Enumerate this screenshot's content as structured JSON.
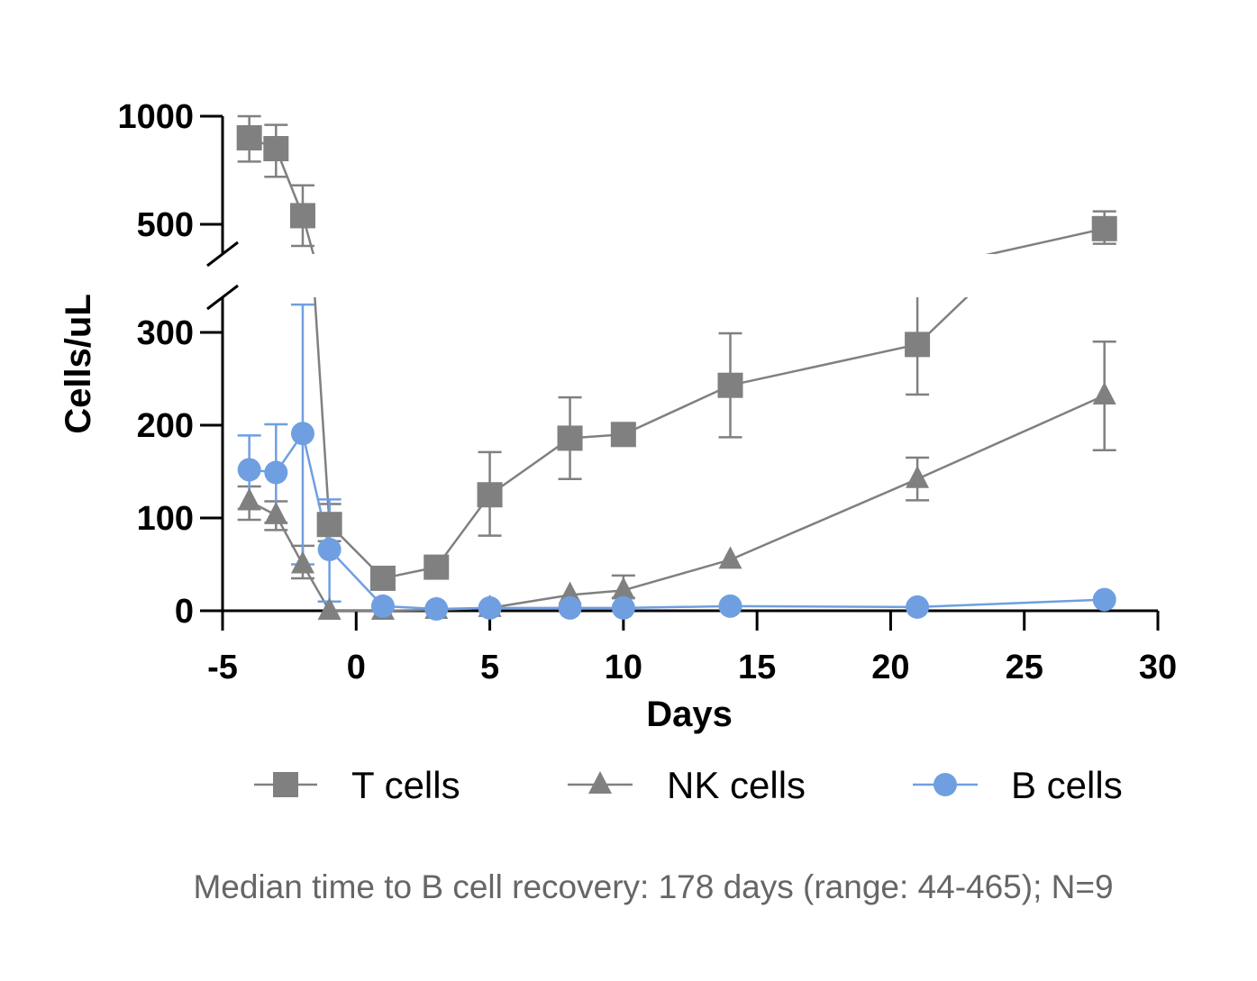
{
  "chart_data": {
    "type": "line",
    "xlabel": "Days",
    "ylabel": "Cells/uL",
    "xlim": [
      -5,
      30
    ],
    "x_ticks": [
      "-5",
      "0",
      "5",
      "10",
      "15",
      "20",
      "25",
      "30"
    ],
    "y_segments": {
      "lower": {
        "range": [
          0,
          350
        ],
        "ticks": [
          "0",
          "100",
          "200",
          "300"
        ]
      },
      "upper": {
        "range": [
          400,
          1000
        ],
        "ticks": [
          "500",
          "1000"
        ]
      }
    },
    "series": [
      {
        "name": "T cells",
        "marker": "square",
        "color": "#808080",
        "points": [
          {
            "x": -4,
            "y": 900,
            "err_low": 790,
            "err_high": 1000
          },
          {
            "x": -3,
            "y": 850,
            "err_low": 720,
            "err_high": 960
          },
          {
            "x": -2,
            "y": 540,
            "err_low": 400,
            "err_high": 680
          },
          {
            "x": -1,
            "y": 93,
            "err_low": 75,
            "err_high": 115
          },
          {
            "x": 1,
            "y": 35
          },
          {
            "x": 3,
            "y": 47
          },
          {
            "x": 5,
            "y": 125,
            "err_low": 81,
            "err_high": 171
          },
          {
            "x": 8,
            "y": 186,
            "err_low": 142,
            "err_high": 230
          },
          {
            "x": 10,
            "y": 190
          },
          {
            "x": 14,
            "y": 243,
            "err_low": 187,
            "err_high": 299
          },
          {
            "x": 21,
            "y": 287,
            "err_low": 233,
            "err_high": 340
          },
          {
            "x": 28,
            "y": 480,
            "err_low": 410,
            "err_high": 560
          }
        ]
      },
      {
        "name": "NK cells",
        "marker": "triangle",
        "color": "#808080",
        "points": [
          {
            "x": -4,
            "y": 118,
            "err_low": 98,
            "err_high": 134
          },
          {
            "x": -3,
            "y": 103,
            "err_low": 87,
            "err_high": 118
          },
          {
            "x": -2,
            "y": 50,
            "err_low": 35,
            "err_high": 70
          },
          {
            "x": -1,
            "y": 0
          },
          {
            "x": 1,
            "y": 0
          },
          {
            "x": 3,
            "y": 1
          },
          {
            "x": 5,
            "y": 3
          },
          {
            "x": 8,
            "y": 17
          },
          {
            "x": 10,
            "y": 22,
            "err_low": 14,
            "err_high": 38
          },
          {
            "x": 14,
            "y": 55
          },
          {
            "x": 21,
            "y": 142,
            "err_low": 119,
            "err_high": 165
          },
          {
            "x": 28,
            "y": 232,
            "err_low": 173,
            "err_high": 290
          }
        ]
      },
      {
        "name": "B cells",
        "marker": "circle",
        "color": "#6f9fe0",
        "points": [
          {
            "x": -4,
            "y": 152,
            "err_low": 110,
            "err_high": 189
          },
          {
            "x": -3,
            "y": 149,
            "err_low": 95,
            "err_high": 201
          },
          {
            "x": -2,
            "y": 191,
            "err_low": 50,
            "err_high": 330
          },
          {
            "x": -1,
            "y": 66,
            "err_low": 10,
            "err_high": 120
          },
          {
            "x": 1,
            "y": 5
          },
          {
            "x": 3,
            "y": 2
          },
          {
            "x": 5,
            "y": 3
          },
          {
            "x": 8,
            "y": 3
          },
          {
            "x": 10,
            "y": 3
          },
          {
            "x": 14,
            "y": 5
          },
          {
            "x": 21,
            "y": 4
          },
          {
            "x": 28,
            "y": 12
          }
        ]
      }
    ],
    "legend": [
      "T cells",
      "NK cells",
      "B cells"
    ],
    "legend_position": "bottom"
  },
  "caption": "Median time to B cell recovery: 178 days (range: 44-465); N=9"
}
